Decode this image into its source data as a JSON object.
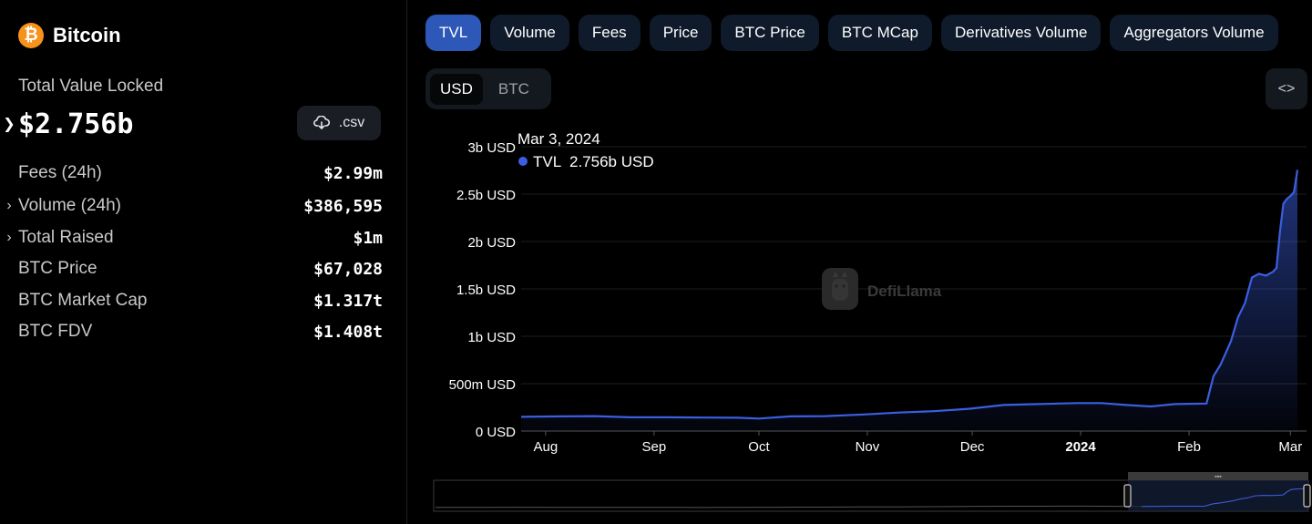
{
  "sidebar": {
    "brand": {
      "icon": "bitcoin-icon",
      "name": "Bitcoin",
      "logo_glyph": "₿"
    },
    "tvl": {
      "label": "Total Value Locked",
      "value": "$2.756b"
    },
    "csv_button": {
      "icon": "download-cloud-icon",
      "label": ".csv"
    },
    "stats": [
      {
        "label": "Fees (24h)",
        "value": "$2.99m",
        "expandable": false
      },
      {
        "label": "Volume (24h)",
        "value": "$386,595",
        "expandable": true
      },
      {
        "label": "Total Raised",
        "value": "$1m",
        "expandable": true
      },
      {
        "label": "BTC Price",
        "value": "$67,028",
        "expandable": false
      },
      {
        "label": "BTC Market Cap",
        "value": "$1.317t",
        "expandable": false
      },
      {
        "label": "BTC FDV",
        "value": "$1.408t",
        "expandable": false
      }
    ]
  },
  "tabs": [
    {
      "label": "TVL",
      "active": true
    },
    {
      "label": "Volume",
      "active": false
    },
    {
      "label": "Fees",
      "active": false
    },
    {
      "label": "Price",
      "active": false
    },
    {
      "label": "BTC Price",
      "active": false
    },
    {
      "label": "BTC MCap",
      "active": false
    },
    {
      "label": "Derivatives Volume",
      "active": false
    },
    {
      "label": "Aggregators Volume",
      "active": false
    }
  ],
  "currency_toggle": {
    "options": [
      "USD",
      "BTC"
    ],
    "selected": "USD"
  },
  "embed_button": {
    "icon": "code-brackets-icon",
    "label": "<>"
  },
  "watermark": "DefiLlama",
  "tooltip": {
    "date": "Mar 3, 2024",
    "series": "TVL",
    "value": "2.756b USD"
  },
  "colors": {
    "accent": "#3b5fe0",
    "active_tab": "#2d58b8",
    "tab_bg": "#0f1a2b",
    "btc_orange": "#f7931a"
  },
  "chart_data": {
    "type": "area",
    "title": "",
    "xlabel": "",
    "ylabel": "",
    "ylim": [
      0,
      3000000000
    ],
    "ytick_labels": [
      "0 USD",
      "500m USD",
      "1b USD",
      "1.5b USD",
      "2b USD",
      "2.5b USD",
      "3b USD"
    ],
    "ytick_values": [
      0,
      500000000,
      1000000000,
      1500000000,
      2000000000,
      2500000000,
      3000000000
    ],
    "xlim": [
      "2023-07-25",
      "2024-03-03"
    ],
    "xtick_labels": [
      {
        "label": "Aug",
        "date": "2023-08-01",
        "bold": false
      },
      {
        "label": "Sep",
        "date": "2023-09-01",
        "bold": false
      },
      {
        "label": "Oct",
        "date": "2023-10-01",
        "bold": false
      },
      {
        "label": "Nov",
        "date": "2023-11-01",
        "bold": false
      },
      {
        "label": "Dec",
        "date": "2023-12-01",
        "bold": false
      },
      {
        "label": "2024",
        "date": "2024-01-01",
        "bold": true
      },
      {
        "label": "Feb",
        "date": "2024-02-01",
        "bold": false
      },
      {
        "label": "Mar",
        "date": "2024-03-01",
        "bold": false
      }
    ],
    "grid": true,
    "series": [
      {
        "name": "TVL",
        "points": [
          [
            "2023-07-25",
            150000000
          ],
          [
            "2023-08-05",
            155000000
          ],
          [
            "2023-08-15",
            158000000
          ],
          [
            "2023-08-25",
            145000000
          ],
          [
            "2023-09-05",
            145000000
          ],
          [
            "2023-09-15",
            142000000
          ],
          [
            "2023-09-25",
            140000000
          ],
          [
            "2023-10-01",
            132000000
          ],
          [
            "2023-10-10",
            155000000
          ],
          [
            "2023-10-20",
            158000000
          ],
          [
            "2023-10-31",
            175000000
          ],
          [
            "2023-11-10",
            195000000
          ],
          [
            "2023-11-20",
            210000000
          ],
          [
            "2023-11-30",
            235000000
          ],
          [
            "2023-12-10",
            275000000
          ],
          [
            "2023-12-20",
            285000000
          ],
          [
            "2023-12-31",
            295000000
          ],
          [
            "2024-01-07",
            295000000
          ],
          [
            "2024-01-14",
            275000000
          ],
          [
            "2024-01-21",
            260000000
          ],
          [
            "2024-01-28",
            285000000
          ],
          [
            "2024-02-06",
            290000000
          ],
          [
            "2024-02-08",
            580000000
          ],
          [
            "2024-02-10",
            700000000
          ],
          [
            "2024-02-13",
            950000000
          ],
          [
            "2024-02-15",
            1200000000
          ],
          [
            "2024-02-17",
            1350000000
          ],
          [
            "2024-02-19",
            1620000000
          ],
          [
            "2024-02-21",
            1660000000
          ],
          [
            "2024-02-23",
            1640000000
          ],
          [
            "2024-02-25",
            1680000000
          ],
          [
            "2024-02-26",
            1720000000
          ],
          [
            "2024-02-27",
            2100000000
          ],
          [
            "2024-02-28",
            2400000000
          ],
          [
            "2024-02-29",
            2450000000
          ],
          [
            "2024-03-01",
            2480000000
          ],
          [
            "2024-03-02",
            2520000000
          ],
          [
            "2024-03-03",
            2756000000
          ]
        ]
      }
    ]
  }
}
